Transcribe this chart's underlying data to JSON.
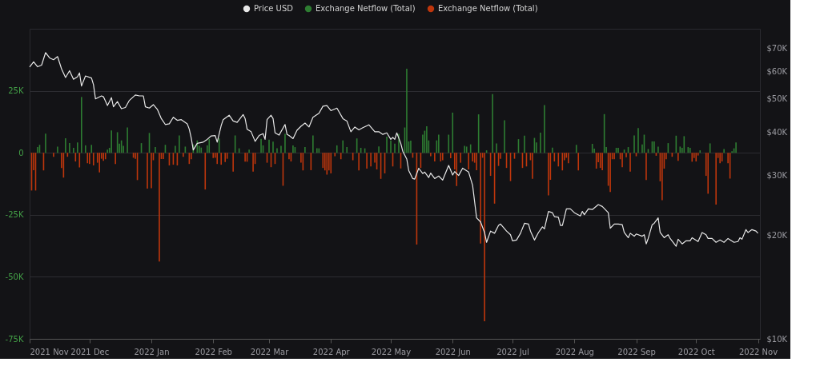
{
  "chart_data": {
    "type": "bar",
    "legend": "top",
    "grid": "y",
    "log": "y2",
    "xlim": [
      "2021-11-01",
      "2022-11-02"
    ],
    "xticks": [
      {
        "value": "2021-11-01",
        "label": "2021 Nov"
      },
      {
        "value": "2021-12-01",
        "label": "2021 Dec"
      },
      {
        "value": "2022-01-01",
        "label": "2022 Jan"
      },
      {
        "value": "2022-02-01",
        "label": "2022 Feb"
      },
      {
        "value": "2022-03-01",
        "label": "2022 Mar"
      },
      {
        "value": "2022-04-01",
        "label": "2022 Apr"
      },
      {
        "value": "2022-05-01",
        "label": "2022 May"
      },
      {
        "value": "2022-06-01",
        "label": "2022 Jun"
      },
      {
        "value": "2022-07-01",
        "label": "2022 Jul"
      },
      {
        "value": "2022-08-01",
        "label": "2022 Aug"
      },
      {
        "value": "2022-09-01",
        "label": "2022 Sep"
      },
      {
        "value": "2022-10-01",
        "label": "2022 Oct"
      },
      {
        "value": "2022-11-01",
        "label": "2022 Nov"
      }
    ],
    "ylim": [
      -75000,
      50000
    ],
    "yticks": [
      {
        "value": -75000,
        "label": "-75K"
      },
      {
        "value": -50000,
        "label": "-50K"
      },
      {
        "value": -25000,
        "label": "-25K"
      },
      {
        "value": 0,
        "label": "0"
      },
      {
        "value": 25000,
        "label": "25K"
      }
    ],
    "y2lim": [
      10000,
      80000
    ],
    "y2ticks": [
      {
        "value": 10000,
        "label": "$10K"
      },
      {
        "value": 20000,
        "label": "$20K"
      },
      {
        "value": 30000,
        "label": "$30K"
      },
      {
        "value": 40000,
        "label": "$40K"
      },
      {
        "value": 50000,
        "label": "$50K"
      },
      {
        "value": 60000,
        "label": "$60K"
      },
      {
        "value": 70000,
        "label": "$70K"
      }
    ],
    "series": [
      {
        "name": "Price USD",
        "type": "line",
        "axis": "y2",
        "color": "#e8e8e8",
        "x": [
          "2021-11-01",
          "2021-11-03",
          "2021-11-05",
          "2021-11-07",
          "2021-11-09",
          "2021-11-11",
          "2021-11-13",
          "2021-11-15",
          "2021-11-17",
          "2021-11-19",
          "2021-11-21",
          "2021-11-23",
          "2021-11-25",
          "2021-11-26",
          "2021-11-27",
          "2021-11-29",
          "2021-12-02",
          "2021-12-03",
          "2021-12-04",
          "2021-12-07",
          "2021-12-08",
          "2021-12-10",
          "2021-12-12",
          "2021-12-13",
          "2021-12-15",
          "2021-12-17",
          "2021-12-19",
          "2021-12-21",
          "2021-12-24",
          "2021-12-26",
          "2021-12-28",
          "2021-12-29",
          "2021-12-31",
          "2022-01-02",
          "2022-01-04",
          "2022-01-06",
          "2022-01-08",
          "2022-01-10",
          "2022-01-12",
          "2022-01-14",
          "2022-01-16",
          "2022-01-19",
          "2022-01-20",
          "2022-01-21",
          "2022-01-22",
          "2022-01-24",
          "2022-01-27",
          "2022-01-29",
          "2022-01-31",
          "2022-02-02",
          "2022-02-03",
          "2022-02-05",
          "2022-02-06",
          "2022-02-09",
          "2022-02-11",
          "2022-02-13",
          "2022-02-16",
          "2022-02-17",
          "2022-02-18",
          "2022-02-20",
          "2022-02-22",
          "2022-02-24",
          "2022-02-26",
          "2022-02-27",
          "2022-02-28",
          "2022-03-02",
          "2022-03-03",
          "2022-03-04",
          "2022-03-06",
          "2022-03-09",
          "2022-03-10",
          "2022-03-11",
          "2022-03-13",
          "2022-03-15",
          "2022-03-17",
          "2022-03-19",
          "2022-03-21",
          "2022-03-23",
          "2022-03-26",
          "2022-03-28",
          "2022-03-30",
          "2022-04-01",
          "2022-04-04",
          "2022-04-07",
          "2022-04-09",
          "2022-04-11",
          "2022-04-13",
          "2022-04-15",
          "2022-04-17",
          "2022-04-20",
          "2022-04-23",
          "2022-04-25",
          "2022-04-27",
          "2022-04-29",
          "2022-05-01",
          "2022-05-02",
          "2022-05-03",
          "2022-05-04",
          "2022-05-06",
          "2022-05-07",
          "2022-05-09",
          "2022-05-10",
          "2022-05-12",
          "2022-05-13",
          "2022-05-15",
          "2022-05-17",
          "2022-05-18",
          "2022-05-20",
          "2022-05-21",
          "2022-05-23",
          "2022-05-25",
          "2022-05-27",
          "2022-05-30",
          "2022-06-01",
          "2022-06-02",
          "2022-06-04",
          "2022-06-06",
          "2022-06-09",
          "2022-06-11",
          "2022-06-13",
          "2022-06-15",
          "2022-06-17",
          "2022-06-18",
          "2022-06-20",
          "2022-06-22",
          "2022-06-24",
          "2022-06-25",
          "2022-06-28",
          "2022-06-30",
          "2022-07-01",
          "2022-07-03",
          "2022-07-05",
          "2022-07-07",
          "2022-07-09",
          "2022-07-10",
          "2022-07-12",
          "2022-07-14",
          "2022-07-16",
          "2022-07-17",
          "2022-07-19",
          "2022-07-21",
          "2022-07-22",
          "2022-07-24",
          "2022-07-25",
          "2022-07-26",
          "2022-07-28",
          "2022-07-30",
          "2022-08-01",
          "2022-08-04",
          "2022-08-05",
          "2022-08-06",
          "2022-08-08",
          "2022-08-10",
          "2022-08-13",
          "2022-08-15",
          "2022-08-18",
          "2022-08-19",
          "2022-08-21",
          "2022-08-23",
          "2022-08-25",
          "2022-08-26",
          "2022-08-28",
          "2022-08-29",
          "2022-08-31",
          "2022-09-01",
          "2022-09-04",
          "2022-09-05",
          "2022-09-06",
          "2022-09-07",
          "2022-09-09",
          "2022-09-10",
          "2022-09-12",
          "2022-09-13",
          "2022-09-15",
          "2022-09-16",
          "2022-09-17",
          "2022-09-18",
          "2022-09-21",
          "2022-09-22",
          "2022-09-24",
          "2022-09-26",
          "2022-09-28",
          "2022-09-29",
          "2022-10-02",
          "2022-10-04",
          "2022-10-06",
          "2022-10-07",
          "2022-10-09",
          "2022-10-11",
          "2022-10-13",
          "2022-10-15",
          "2022-10-17",
          "2022-10-20",
          "2022-10-22",
          "2022-10-23",
          "2022-10-24",
          "2022-10-26",
          "2022-10-27",
          "2022-10-29",
          "2022-10-31",
          "2022-11-01"
        ],
        "values": [
          61900,
          64100,
          62000,
          62700,
          68200,
          65800,
          65000,
          66400,
          61100,
          57700,
          60400,
          57000,
          58000,
          59500,
          54500,
          58300,
          57500,
          55000,
          50000,
          51000,
          50700,
          47800,
          50400,
          47400,
          49100,
          46800,
          47200,
          49500,
          51300,
          51000,
          51000,
          47400,
          47000,
          48100,
          46600,
          43800,
          42100,
          42300,
          44200,
          43300,
          43500,
          42300,
          40800,
          38400,
          35500,
          37100,
          37400,
          38100,
          39000,
          39100,
          37400,
          41800,
          43500,
          44800,
          43100,
          42700,
          45000,
          43800,
          40800,
          40100,
          37600,
          39100,
          39600,
          38100,
          43500,
          44800,
          43800,
          39800,
          39200,
          42100,
          39400,
          39100,
          38300,
          40500,
          41600,
          42500,
          41400,
          44200,
          45400,
          47600,
          47800,
          46200,
          47000,
          43800,
          43100,
          40100,
          41400,
          40600,
          41200,
          42000,
          40100,
          40100,
          39400,
          39800,
          38100,
          38600,
          38100,
          39800,
          37100,
          35200,
          33400,
          30900,
          29300,
          29200,
          31400,
          30300,
          30600,
          29500,
          30400,
          29300,
          29800,
          29000,
          32000,
          30000,
          30700,
          29900,
          31400,
          30600,
          28000,
          22500,
          21900,
          20400,
          19100,
          20600,
          20300,
          21400,
          21600,
          20600,
          20100,
          19300,
          19400,
          20300,
          21700,
          21600,
          20600,
          19400,
          20400,
          21200,
          20900,
          23500,
          23300,
          22700,
          22600,
          21400,
          21400,
          23900,
          23900,
          23300,
          22800,
          23500,
          23000,
          23900,
          23800,
          24600,
          24300,
          23300,
          21000,
          21600,
          21600,
          21500,
          20400,
          19700,
          20300,
          19900,
          20200,
          19900,
          20100,
          18900,
          19600,
          21500,
          21700,
          22500,
          20400,
          19700,
          19900,
          20100,
          19600,
          18600,
          19500,
          18900,
          19300,
          19300,
          19700,
          19200,
          20400,
          20100,
          19600,
          19600,
          19100,
          19400,
          19100,
          19600,
          19100,
          19200,
          19700,
          19500,
          20800,
          20400,
          20800,
          20600,
          20300
        ]
      },
      {
        "name": "Exchange Netflow (Total)",
        "axis": "y",
        "color": "#2e7d32",
        "x": [
          "2021-11-05",
          "2021-11-06",
          "2021-11-09",
          "2021-11-15",
          "2021-11-19",
          "2021-11-21",
          "2021-11-23",
          "2021-11-25",
          "2021-11-27",
          "2021-11-29",
          "2021-12-02",
          "2021-12-10",
          "2021-12-11",
          "2021-12-12",
          "2021-12-15",
          "2021-12-16",
          "2021-12-17",
          "2021-12-18",
          "2021-12-20",
          "2021-12-27",
          "2021-12-31",
          "2022-01-03",
          "2022-01-08",
          "2022-01-13",
          "2022-01-15",
          "2022-01-18",
          "2022-01-22",
          "2022-01-24",
          "2022-01-25",
          "2022-01-26",
          "2022-01-29",
          "2022-01-30",
          "2022-02-04",
          "2022-02-12",
          "2022-02-14",
          "2022-02-19",
          "2022-02-25",
          "2022-02-26",
          "2022-03-01",
          "2022-03-03",
          "2022-03-05",
          "2022-03-07",
          "2022-03-09",
          "2022-03-13",
          "2022-03-14",
          "2022-03-19",
          "2022-03-23",
          "2022-03-25",
          "2022-03-26",
          "2022-04-04",
          "2022-04-07",
          "2022-04-09",
          "2022-04-14",
          "2022-04-16",
          "2022-04-18",
          "2022-04-25",
          "2022-04-29",
          "2022-05-01",
          "2022-05-03",
          "2022-05-05",
          "2022-05-08",
          "2022-05-09",
          "2022-05-10",
          "2022-05-11",
          "2022-05-17",
          "2022-05-18",
          "2022-05-19",
          "2022-05-20",
          "2022-05-24",
          "2022-05-25",
          "2022-05-30",
          "2022-06-01",
          "2022-06-07",
          "2022-06-08",
          "2022-06-10",
          "2022-06-14",
          "2022-06-18",
          "2022-06-21",
          "2022-06-23",
          "2022-06-27",
          "2022-07-04",
          "2022-07-07",
          "2022-07-12",
          "2022-07-13",
          "2022-07-15",
          "2022-07-17",
          "2022-07-21",
          "2022-08-02",
          "2022-08-10",
          "2022-08-11",
          "2022-08-16",
          "2022-08-17",
          "2022-08-22",
          "2022-08-23",
          "2022-08-26",
          "2022-08-28",
          "2022-08-31",
          "2022-09-02",
          "2022-09-04",
          "2022-09-05",
          "2022-09-07",
          "2022-09-09",
          "2022-09-10",
          "2022-09-12",
          "2022-09-17",
          "2022-09-21",
          "2022-09-23",
          "2022-09-24",
          "2022-09-25",
          "2022-09-27",
          "2022-09-28",
          "2022-10-03",
          "2022-10-08",
          "2022-10-15",
          "2022-10-19",
          "2022-10-20",
          "2022-10-21"
        ],
        "values": [
          2300,
          3200,
          7700,
          2500,
          5900,
          3900,
          2000,
          4200,
          22500,
          3000,
          3200,
          1300,
          2000,
          9000,
          8300,
          3700,
          5000,
          2800,
          10200,
          3900,
          8000,
          2300,
          3200,
          2800,
          7000,
          2500,
          3400,
          5000,
          2800,
          2100,
          3000,
          5600,
          5800,
          7000,
          1800,
          1300,
          5600,
          3000,
          5300,
          4500,
          1800,
          2800,
          7600,
          3000,
          2300,
          2300,
          7000,
          1800,
          1800,
          3000,
          5000,
          2300,
          5800,
          2000,
          1800,
          2600,
          6500,
          5000,
          3700,
          7600,
          10200,
          33900,
          4600,
          4900,
          7300,
          8900,
          10700,
          5000,
          5000,
          7300,
          7300,
          16200,
          2800,
          2500,
          3400,
          15500,
          1000,
          23700,
          3800,
          13100,
          5500,
          6900,
          6000,
          4200,
          8100,
          19200,
          2100,
          3200,
          3600,
          1700,
          15600,
          2300,
          2000,
          2000,
          1300,
          2300,
          7000,
          10000,
          3400,
          7300,
          1500,
          4600,
          4600,
          2500,
          3900,
          6900,
          2500,
          2000,
          6700,
          2300,
          2000,
          1000,
          3800,
          1500,
          600,
          1800,
          4200
        ]
      },
      {
        "name": "Exchange Netflow (Total)",
        "axis": "y",
        "color": "#bf360c",
        "x": [
          "2021-11-02",
          "2021-11-03",
          "2021-11-04",
          "2021-11-08",
          "2021-11-13",
          "2021-11-17",
          "2021-11-18",
          "2021-11-20",
          "2021-11-24",
          "2021-11-26",
          "2021-11-30",
          "2021-12-01",
          "2021-12-03",
          "2021-12-05",
          "2021-12-06",
          "2021-12-07",
          "2021-12-08",
          "2021-12-09",
          "2021-12-14",
          "2021-12-23",
          "2021-12-24",
          "2021-12-25",
          "2021-12-30",
          "2022-01-01",
          "2022-01-02",
          "2022-01-05",
          "2022-01-06",
          "2022-01-07",
          "2022-01-10",
          "2022-01-12",
          "2022-01-14",
          "2022-01-17",
          "2022-01-20",
          "2022-01-21",
          "2022-01-28",
          "2022-02-01",
          "2022-02-02",
          "2022-02-03",
          "2022-02-05",
          "2022-02-07",
          "2022-02-08",
          "2022-02-11",
          "2022-02-17",
          "2022-02-18",
          "2022-02-21",
          "2022-02-22",
          "2022-02-28",
          "2022-03-02",
          "2022-03-04",
          "2022-03-08",
          "2022-03-11",
          "2022-03-12",
          "2022-03-17",
          "2022-03-18",
          "2022-03-22",
          "2022-03-28",
          "2022-03-29",
          "2022-03-30",
          "2022-03-31",
          "2022-04-01",
          "2022-04-03",
          "2022-04-06",
          "2022-04-12",
          "2022-04-15",
          "2022-04-19",
          "2022-04-21",
          "2022-04-23",
          "2022-04-24",
          "2022-04-26",
          "2022-04-28",
          "2022-05-02",
          "2022-05-06",
          "2022-05-12",
          "2022-05-14",
          "2022-05-16",
          "2022-05-21",
          "2022-05-23",
          "2022-05-26",
          "2022-05-27",
          "2022-05-31",
          "2022-06-02",
          "2022-06-03",
          "2022-06-05",
          "2022-06-09",
          "2022-06-11",
          "2022-06-12",
          "2022-06-13",
          "2022-06-15",
          "2022-06-16",
          "2022-06-17",
          "2022-06-20",
          "2022-06-22",
          "2022-06-24",
          "2022-06-25",
          "2022-06-28",
          "2022-06-30",
          "2022-07-02",
          "2022-07-06",
          "2022-07-08",
          "2022-07-10",
          "2022-07-11",
          "2022-07-19",
          "2022-07-20",
          "2022-07-22",
          "2022-07-24",
          "2022-07-26",
          "2022-07-27",
          "2022-07-28",
          "2022-07-29",
          "2022-08-03",
          "2022-08-12",
          "2022-08-13",
          "2022-08-14",
          "2022-08-15",
          "2022-08-18",
          "2022-08-19",
          "2022-08-20",
          "2022-08-21",
          "2022-08-24",
          "2022-08-25",
          "2022-08-27",
          "2022-08-29",
          "2022-09-01",
          "2022-09-06",
          "2022-09-11",
          "2022-09-13",
          "2022-09-14",
          "2022-09-15",
          "2022-09-16",
          "2022-09-19",
          "2022-09-22",
          "2022-09-29",
          "2022-09-30",
          "2022-10-01",
          "2022-10-02",
          "2022-10-06",
          "2022-10-07",
          "2022-10-11",
          "2022-10-12",
          "2022-10-13",
          "2022-10-14",
          "2022-10-17",
          "2022-10-18"
        ],
        "values": [
          -15200,
          -7000,
          -15200,
          -7100,
          -1600,
          -6100,
          -10000,
          -1600,
          -3500,
          -5900,
          -4200,
          -4500,
          -5100,
          -4000,
          -7900,
          -2400,
          -3200,
          -2600,
          -4500,
          -2000,
          -2400,
          -11000,
          -14400,
          -14300,
          -3000,
          -43800,
          -2500,
          -2500,
          -5100,
          -4800,
          -5100,
          -1600,
          -4500,
          -2600,
          -14800,
          -2100,
          -2000,
          -4500,
          -4800,
          -3700,
          -2400,
          -7600,
          -3600,
          -3600,
          -7600,
          -4500,
          -4000,
          -5800,
          -4500,
          -13300,
          -2600,
          -3500,
          -4000,
          -7100,
          -7000,
          -6100,
          -7100,
          -8800,
          -7100,
          -8300,
          -1400,
          -2600,
          -3000,
          -7100,
          -6400,
          -5500,
          -4000,
          -6700,
          -10500,
          -8300,
          -5500,
          -6300,
          -2000,
          -37000,
          -6100,
          -1400,
          -3500,
          -3500,
          -3000,
          -2200,
          -6700,
          -13400,
          -4000,
          -6700,
          -3500,
          -4000,
          -7000,
          -36600,
          -2000,
          -67900,
          -9300,
          -20500,
          -5300,
          -2400,
          -6100,
          -11400,
          -2400,
          -6100,
          -5500,
          -3000,
          -10500,
          -17200,
          -10900,
          -3500,
          -5500,
          -7100,
          -3000,
          -2000,
          -4200,
          -7100,
          -6400,
          -3800,
          -6100,
          -7000,
          -13300,
          -15800,
          -2600,
          -2600,
          -2600,
          -5800,
          -1800,
          -7600,
          -1400,
          -11000,
          -1200,
          -11500,
          -19100,
          -6400,
          -2600,
          -1600,
          -3200,
          -3600,
          -2100,
          -3500,
          -1100,
          -9300,
          -16500,
          -20900,
          -2100,
          -4200,
          -3500,
          -4200,
          -10400
        ]
      }
    ]
  }
}
